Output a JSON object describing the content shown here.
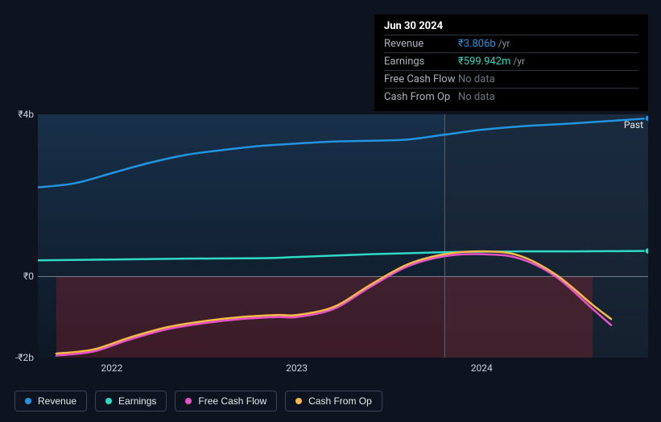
{
  "chart": {
    "type": "line",
    "background_color": "#0d1420",
    "plot_gradient_top": "#18304a",
    "plot_gradient_bottom": "#0d1824",
    "future_overlay_color": "rgba(30,40,55,0.55)",
    "negative_area_color": "rgba(150,35,45,0.35)",
    "zero_line_color": "#b9c2cb",
    "grid_color": "#2a3442",
    "y_axis": {
      "min": -2,
      "max": 4,
      "ticks": [
        {
          "v": 4,
          "label": "₹4b"
        },
        {
          "v": 0,
          "label": "₹0"
        },
        {
          "v": -2,
          "label": "-₹2b"
        }
      ],
      "label_fontsize": 12,
      "label_color": "#c9d1d9"
    },
    "x_axis": {
      "start_year": 2021.6,
      "end_year": 2024.9,
      "ticks": [
        {
          "v": 2022,
          "label": "2022"
        },
        {
          "v": 2023,
          "label": "2023"
        },
        {
          "v": 2024,
          "label": "2024"
        }
      ],
      "label_fontsize": 12,
      "label_color": "#c9d1d9"
    },
    "hover_x": 2023.8,
    "past_future_split_x": 2023.8,
    "past_label": "Past",
    "series": [
      {
        "id": "revenue",
        "label": "Revenue",
        "color": "#2394df",
        "width": 2.5,
        "points": [
          [
            2021.6,
            2.2
          ],
          [
            2021.8,
            2.3
          ],
          [
            2022.0,
            2.55
          ],
          [
            2022.2,
            2.8
          ],
          [
            2022.4,
            3.0
          ],
          [
            2022.6,
            3.12
          ],
          [
            2022.8,
            3.22
          ],
          [
            2023.0,
            3.28
          ],
          [
            2023.2,
            3.33
          ],
          [
            2023.4,
            3.35
          ],
          [
            2023.6,
            3.38
          ],
          [
            2023.8,
            3.5
          ],
          [
            2024.0,
            3.62
          ],
          [
            2024.2,
            3.7
          ],
          [
            2024.5,
            3.78
          ],
          [
            2024.9,
            3.9
          ]
        ]
      },
      {
        "id": "earnings",
        "label": "Earnings",
        "color": "#2fd9c4",
        "width": 2.5,
        "points": [
          [
            2021.6,
            0.4
          ],
          [
            2022.0,
            0.42
          ],
          [
            2022.4,
            0.44
          ],
          [
            2022.8,
            0.45
          ],
          [
            2023.0,
            0.48
          ],
          [
            2023.4,
            0.55
          ],
          [
            2023.8,
            0.6
          ],
          [
            2024.2,
            0.62
          ],
          [
            2024.5,
            0.62
          ],
          [
            2024.9,
            0.63
          ]
        ]
      },
      {
        "id": "fcf",
        "label": "Free Cash Flow",
        "color": "#e752c7",
        "width": 2.5,
        "points": [
          [
            2021.7,
            -1.95
          ],
          [
            2021.9,
            -1.85
          ],
          [
            2022.1,
            -1.55
          ],
          [
            2022.3,
            -1.3
          ],
          [
            2022.5,
            -1.15
          ],
          [
            2022.7,
            -1.05
          ],
          [
            2022.9,
            -1.0
          ],
          [
            2023.0,
            -1.0
          ],
          [
            2023.2,
            -0.8
          ],
          [
            2023.4,
            -0.25
          ],
          [
            2023.6,
            0.25
          ],
          [
            2023.8,
            0.5
          ],
          [
            2024.0,
            0.55
          ],
          [
            2024.2,
            0.45
          ],
          [
            2024.4,
            0.0
          ],
          [
            2024.6,
            -0.8
          ],
          [
            2024.7,
            -1.2
          ]
        ]
      },
      {
        "id": "cashop",
        "label": "Cash From Op",
        "color": "#f5b94a",
        "width": 2.5,
        "points": [
          [
            2021.7,
            -1.9
          ],
          [
            2021.9,
            -1.8
          ],
          [
            2022.1,
            -1.5
          ],
          [
            2022.3,
            -1.25
          ],
          [
            2022.5,
            -1.1
          ],
          [
            2022.7,
            -1.0
          ],
          [
            2022.9,
            -0.95
          ],
          [
            2023.0,
            -0.95
          ],
          [
            2023.2,
            -0.75
          ],
          [
            2023.4,
            -0.2
          ],
          [
            2023.6,
            0.3
          ],
          [
            2023.8,
            0.55
          ],
          [
            2024.0,
            0.62
          ],
          [
            2024.2,
            0.52
          ],
          [
            2024.4,
            0.05
          ],
          [
            2024.6,
            -0.7
          ],
          [
            2024.7,
            -1.05
          ]
        ]
      }
    ],
    "end_markers": [
      {
        "series": "revenue",
        "x": 2024.9,
        "y": 3.9,
        "color": "#2394df"
      },
      {
        "series": "earnings",
        "x": 2024.9,
        "y": 0.63,
        "color": "#2fd9c4"
      }
    ]
  },
  "tooltip": {
    "title": "Jun 30 2024",
    "rows": [
      {
        "key": "Revenue",
        "value": "₹3.806b",
        "value_color": "#2394df",
        "unit": "/yr"
      },
      {
        "key": "Earnings",
        "value": "₹599.942m",
        "value_color": "#2fd9c4",
        "unit": "/yr"
      },
      {
        "key": "Free Cash Flow",
        "value": "No data",
        "nodata": true
      },
      {
        "key": "Cash From Op",
        "value": "No data",
        "nodata": true
      }
    ]
  },
  "legend": {
    "items": [
      {
        "id": "revenue",
        "label": "Revenue",
        "color": "#2394df"
      },
      {
        "id": "earnings",
        "label": "Earnings",
        "color": "#2fd9c4"
      },
      {
        "id": "fcf",
        "label": "Free Cash Flow",
        "color": "#e752c7"
      },
      {
        "id": "cashop",
        "label": "Cash From Op",
        "color": "#f5b94a"
      }
    ],
    "border_color": "#3a4452",
    "text_color": "#e6e9ec",
    "fontsize": 12
  }
}
